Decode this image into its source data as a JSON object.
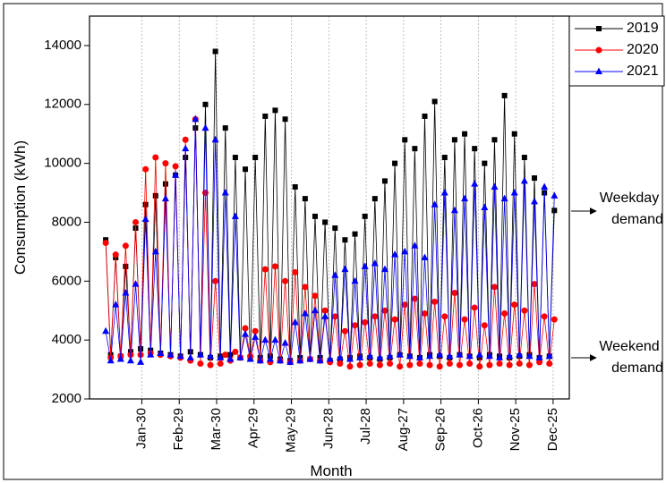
{
  "chart_data": {
    "type": "line",
    "x_label": "Month",
    "y_label": "Consumption (kWh)",
    "xlim": [
      -12,
      373
    ],
    "ylim": [
      2000,
      15000
    ],
    "xticks": [
      {
        "value": 30,
        "label": "Jan-30"
      },
      {
        "value": 60,
        "label": "Feb-29"
      },
      {
        "value": 90,
        "label": "Mar-30"
      },
      {
        "value": 120,
        "label": "Apr-29"
      },
      {
        "value": 150,
        "label": "May-29"
      },
      {
        "value": 180,
        "label": "Jun-28"
      },
      {
        "value": 210,
        "label": "Jul-28"
      },
      {
        "value": 240,
        "label": "Aug-27"
      },
      {
        "value": 270,
        "label": "Sep-26"
      },
      {
        "value": 300,
        "label": "Oct-26"
      },
      {
        "value": 330,
        "label": "Nov-25"
      },
      {
        "value": 360,
        "label": "Dec-25"
      }
    ],
    "yticks": [
      2000,
      4000,
      6000,
      8000,
      10000,
      12000,
      14000
    ],
    "grid": true,
    "legend": "top-right",
    "annotations": [
      {
        "line1": "Weekday",
        "line2": "demand"
      },
      {
        "line1": "Weekend",
        "line2": "demand"
      }
    ],
    "x": [
      1,
      5,
      9,
      13,
      17,
      21,
      25,
      29,
      33,
      37,
      41,
      45,
      49,
      53,
      57,
      61,
      65,
      69,
      73,
      77,
      81,
      85,
      89,
      93,
      97,
      101,
      105,
      109,
      113,
      117,
      121,
      125,
      129,
      133,
      137,
      141,
      145,
      149,
      153,
      157,
      161,
      165,
      169,
      173,
      177,
      181,
      185,
      189,
      193,
      197,
      201,
      205,
      209,
      213,
      217,
      221,
      225,
      229,
      233,
      237,
      241,
      245,
      249,
      253,
      257,
      261,
      265,
      269,
      273,
      277,
      281,
      285,
      289,
      293,
      297,
      301,
      305,
      309,
      313,
      317,
      321,
      325,
      329,
      333,
      337,
      341,
      345,
      349,
      353,
      357,
      361
    ],
    "series": [
      {
        "name": "2019",
        "color": "#000000",
        "marker": "square",
        "values": [
          7400,
          3500,
          6800,
          3450,
          6500,
          3600,
          7800,
          3700,
          8600,
          3650,
          8900,
          3550,
          9300,
          3500,
          9600,
          3450,
          10200,
          3600,
          11200,
          3500,
          12000,
          3400,
          13800,
          3450,
          11200,
          3500,
          10200,
          3400,
          9800,
          3350,
          10200,
          3400,
          11600,
          3450,
          11800,
          3350,
          11500,
          3300,
          9200,
          3400,
          8800,
          3350,
          8200,
          3400,
          8000,
          3300,
          7800,
          3350,
          7400,
          3400,
          7600,
          3450,
          8200,
          3400,
          8800,
          3350,
          9400,
          3400,
          10000,
          3500,
          10800,
          3450,
          10500,
          3400,
          11600,
          3500,
          12100,
          3450,
          10200,
          3400,
          10800,
          3500,
          11000,
          3450,
          10500,
          3400,
          10000,
          3500,
          10800,
          3450,
          12300,
          3400,
          11000,
          3450,
          10200,
          3500,
          9500,
          3400,
          9000,
          3450,
          8400
        ]
      },
      {
        "name": "2020",
        "color": "#ff0000",
        "marker": "circle",
        "values": [
          7300,
          3400,
          6900,
          3450,
          7200,
          3500,
          8000,
          3500,
          9800,
          3550,
          10200,
          3500,
          10000,
          3450,
          9900,
          3400,
          10800,
          3300,
          11500,
          3200,
          9000,
          3150,
          6000,
          3200,
          3500,
          3300,
          3600,
          3400,
          4400,
          3450,
          4300,
          3300,
          6400,
          3250,
          6500,
          3300,
          6000,
          3250,
          6300,
          3300,
          5800,
          3350,
          5500,
          3300,
          5000,
          3250,
          4800,
          3200,
          4300,
          3100,
          4500,
          3150,
          4600,
          3200,
          4800,
          3150,
          5000,
          3200,
          4700,
          3100,
          5200,
          3150,
          5400,
          3200,
          4900,
          3150,
          5300,
          3100,
          4800,
          3200,
          5600,
          3150,
          4700,
          3200,
          5100,
          3100,
          4500,
          3150,
          5800,
          3200,
          4900,
          3150,
          5200,
          3200,
          5000,
          3150,
          5900,
          3250,
          4800,
          3200,
          4700
        ]
      },
      {
        "name": "2021",
        "color": "#0000ff",
        "marker": "triangle",
        "values": [
          4300,
          3300,
          5200,
          3350,
          5600,
          3300,
          5900,
          3250,
          8100,
          3500,
          7000,
          3550,
          8800,
          3500,
          9600,
          3450,
          10500,
          3400,
          11500,
          3500,
          11200,
          3450,
          10800,
          3400,
          9000,
          3350,
          8200,
          3400,
          4200,
          3350,
          4100,
          3300,
          4000,
          3350,
          4000,
          3300,
          3900,
          3250,
          4600,
          3300,
          4900,
          3350,
          5000,
          3300,
          4800,
          3350,
          6200,
          3400,
          6400,
          3350,
          6000,
          3400,
          6500,
          3450,
          6600,
          3400,
          6400,
          3450,
          6900,
          3500,
          7000,
          3450,
          7200,
          3400,
          6800,
          3450,
          8600,
          3500,
          9000,
          3450,
          8400,
          3500,
          8800,
          3450,
          9300,
          3500,
          8500,
          3450,
          9200,
          3400,
          8800,
          3450,
          9000,
          3500,
          9400,
          3450,
          8700,
          3400,
          9200,
          3450,
          8900
        ]
      }
    ]
  }
}
